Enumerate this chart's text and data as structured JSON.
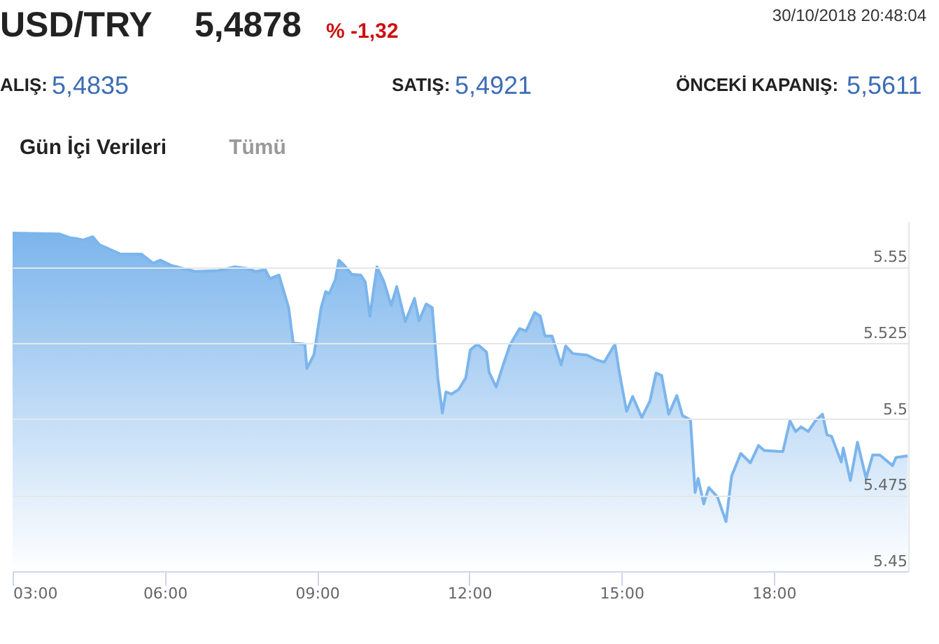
{
  "chart_data": {
    "type": "area",
    "title": "USD/TRY",
    "annotations": [
      "5,4878",
      "% -1,32",
      "30/10/2018 20:48:04",
      "ALIŞ:",
      "5,4835",
      "SATIŞ:",
      "5,4921",
      "ÖNCEKİ KAPANIŞ:",
      "5,5611",
      "Gün İçi Verileri",
      "Tümü"
    ],
    "x": [
      3.0,
      3.93,
      4.12,
      4.25,
      4.39,
      4.58,
      4.71,
      5.13,
      5.54,
      5.77,
      5.91,
      6.14,
      6.6,
      7.06,
      7.38,
      7.61,
      7.79,
      7.98,
      8.07,
      8.25,
      8.44,
      8.53,
      8.76,
      8.8,
      8.94,
      9.08,
      9.17,
      9.24,
      9.36,
      9.43,
      9.54,
      9.68,
      9.86,
      9.95,
      10.04,
      10.18,
      10.32,
      10.46,
      10.57,
      10.74,
      10.92,
      11.01,
      11.15,
      11.27,
      11.38,
      11.47,
      11.54,
      11.65,
      11.79,
      11.93,
      12.02,
      12.16,
      12.34,
      12.39,
      12.53,
      12.66,
      12.8,
      12.99,
      13.12,
      13.29,
      13.4,
      13.49,
      13.63,
      13.81,
      13.9,
      14.04,
      14.32,
      14.5,
      14.66,
      14.87,
      14.96,
      15.1,
      15.22,
      15.4,
      15.56,
      15.68,
      15.79,
      15.93,
      16.09,
      16.2,
      16.36,
      16.45,
      16.51,
      16.62,
      16.72,
      16.89,
      17.06,
      17.17,
      17.35,
      17.54,
      17.7,
      17.81,
      18.18,
      18.32,
      18.43,
      18.54,
      18.68,
      18.82,
      18.96,
      19.05,
      19.14,
      19.33,
      19.37,
      19.51,
      19.65,
      19.82,
      19.95,
      20.09,
      20.34,
      20.41,
      20.64
    ],
    "series": [
      {
        "color": "#7cb5ec",
        "values": [
          5.5611,
          5.5608,
          5.5596,
          5.5593,
          5.5588,
          5.5599,
          5.5573,
          5.5542,
          5.5542,
          5.5512,
          5.5522,
          5.5504,
          5.5485,
          5.5488,
          5.55,
          5.5495,
          5.5485,
          5.5491,
          5.5461,
          5.5473,
          5.5366,
          5.525,
          5.5246,
          5.5166,
          5.5212,
          5.5366,
          5.5419,
          5.5412,
          5.5458,
          5.5522,
          5.5504,
          5.5476,
          5.5473,
          5.545,
          5.5338,
          5.55,
          5.545,
          5.5373,
          5.5435,
          5.532,
          5.5396,
          5.5323,
          5.5378,
          5.5366,
          5.5135,
          5.502,
          5.5089,
          5.5082,
          5.5097,
          5.5135,
          5.5227,
          5.5246,
          5.522,
          5.5154,
          5.5105,
          5.5174,
          5.5243,
          5.5297,
          5.5289,
          5.535,
          5.5338,
          5.5273,
          5.5273,
          5.5178,
          5.524,
          5.5215,
          5.521,
          5.5195,
          5.5187,
          5.5246,
          5.5151,
          5.5025,
          5.5074,
          5.5005,
          5.5059,
          5.5151,
          5.5143,
          5.5016,
          5.5077,
          5.5012,
          5.4997,
          5.4759,
          5.4805,
          5.4721,
          5.4775,
          5.4744,
          5.4663,
          5.4813,
          5.4887,
          5.4856,
          5.4913,
          5.4897,
          5.4893,
          5.4994,
          5.4959,
          5.4974,
          5.4959,
          5.4994,
          5.5016,
          5.4948,
          5.4943,
          5.4859,
          5.4905,
          5.4798,
          5.4924,
          5.4805,
          5.4882,
          5.4882,
          5.4847,
          5.4874,
          5.4879
        ]
      }
    ],
    "xlim": [
      3,
      20.65
    ],
    "xticks": [
      {
        "value": 3,
        "label": "03:00"
      },
      {
        "value": 6,
        "label": "06:00"
      },
      {
        "value": 9,
        "label": "09:00"
      },
      {
        "value": 12,
        "label": "12:00"
      },
      {
        "value": 15,
        "label": "15:00"
      },
      {
        "value": 18,
        "label": "18:00"
      }
    ],
    "ylim": [
      5.45,
      5.565
    ],
    "yticks": [
      5.45,
      5.475,
      5.5,
      5.525,
      5.55
    ],
    "grid": "y"
  }
}
